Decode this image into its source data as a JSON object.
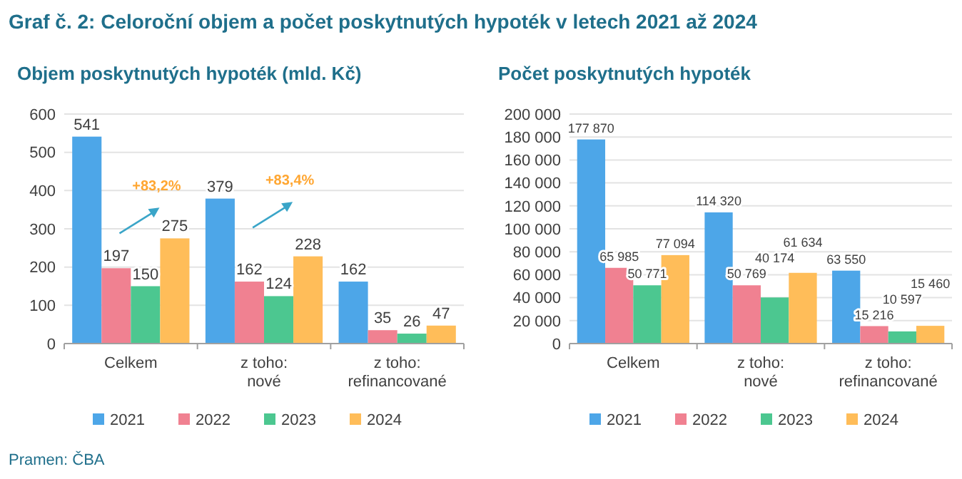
{
  "chart_data": [
    {
      "type": "bar",
      "title": "Objem poskytnutých hypoték (mld. Kč)",
      "categories": [
        "Celkem",
        "z toho:\nnové",
        "z toho:\nrefinancované"
      ],
      "series": [
        {
          "name": "2021",
          "color": "#4da6e8",
          "values": [
            541,
            379,
            162
          ]
        },
        {
          "name": "2022",
          "color": "#f08191",
          "values": [
            197,
            162,
            35
          ]
        },
        {
          "name": "2023",
          "color": "#4cc790",
          "values": [
            150,
            124,
            26
          ]
        },
        {
          "name": "2024",
          "color": "#ffbd59",
          "values": [
            275,
            228,
            47
          ]
        }
      ],
      "ylim": [
        0,
        600
      ],
      "yticks": [
        0,
        100,
        200,
        300,
        400,
        500,
        600
      ],
      "grid": "y",
      "legend": "bottom",
      "data_labels": true,
      "annotations": [
        "Graf č. 2: Celoroční objem a počet poskytnutých hypoték v letech 2021 až 2024",
        "+83,2%",
        "+83,4%",
        "Pramen: ČBA"
      ]
    },
    {
      "type": "bar",
      "title": "Počet poskytnutých hypoték",
      "categories": [
        "Celkem",
        "z toho:\nnové",
        "z toho:\nrefinancované"
      ],
      "series": [
        {
          "name": "2021",
          "color": "#4da6e8",
          "values": [
            177870,
            114320,
            63550
          ],
          "value_labels": [
            "177 870",
            "114 320",
            "63 550"
          ]
        },
        {
          "name": "2022",
          "color": "#f08191",
          "values": [
            65985,
            50769,
            15216
          ],
          "value_labels": [
            "65 985",
            "50 769",
            "15 216"
          ]
        },
        {
          "name": "2023",
          "color": "#4cc790",
          "values": [
            50771,
            40174,
            10597
          ],
          "value_labels": [
            "50 771",
            "40 174",
            "10 597"
          ]
        },
        {
          "name": "2024",
          "color": "#ffbd59",
          "values": [
            77094,
            61634,
            15460
          ],
          "value_labels": [
            "77 094",
            "61 634",
            "15 460"
          ]
        }
      ],
      "ylim": [
        0,
        200000
      ],
      "yticks": [
        {
          "value": 0,
          "label": "0"
        },
        {
          "value": 20000,
          "label": "20 000"
        },
        {
          "value": 40000,
          "label": "40 000"
        },
        {
          "value": 60000,
          "label": "60 000"
        },
        {
          "value": 80000,
          "label": "80 000"
        },
        {
          "value": 100000,
          "label": "100 000"
        },
        {
          "value": 120000,
          "label": "120 000"
        },
        {
          "value": 140000,
          "label": "140 000"
        },
        {
          "value": 160000,
          "label": "160 000"
        },
        {
          "value": 180000,
          "label": "180 000"
        },
        {
          "value": 200000,
          "label": "200 000"
        }
      ],
      "grid": "y",
      "legend": "bottom"
    }
  ]
}
